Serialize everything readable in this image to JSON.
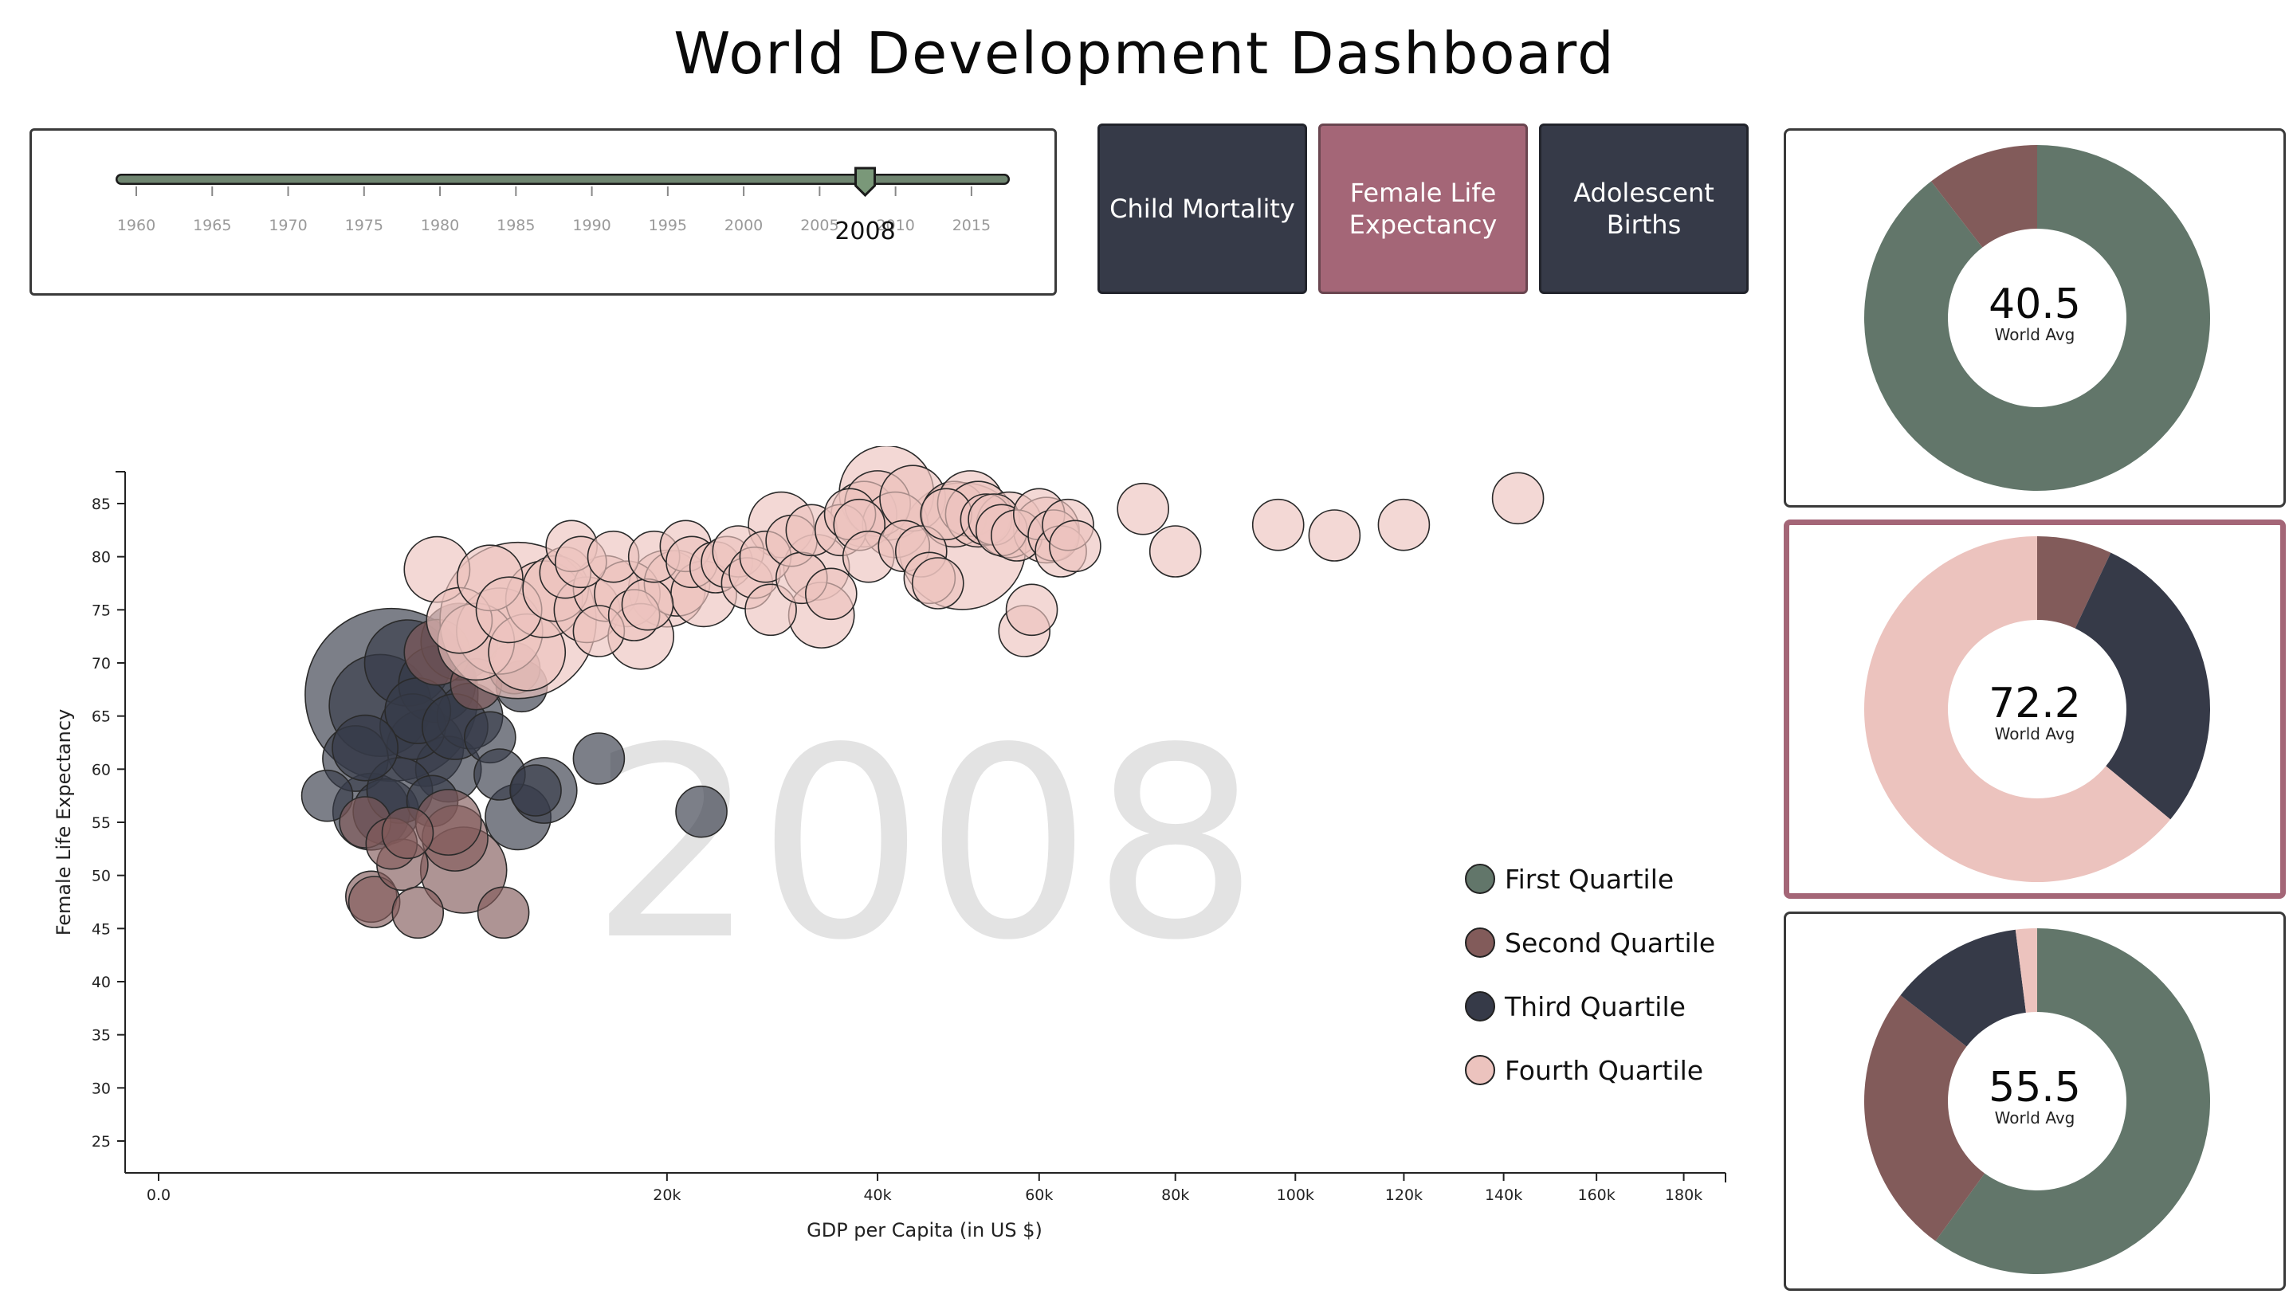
{
  "title": "World Development Dashboard",
  "year_slider": {
    "value": 2008,
    "value_label": "2008",
    "min": 1960,
    "max": 2017,
    "tick_labels": [
      "1960",
      "1965",
      "1970",
      "1975",
      "1980",
      "1985",
      "1990",
      "1995",
      "2000",
      "2005",
      "2010",
      "2015"
    ]
  },
  "buttons": [
    {
      "label": "Child Mortality",
      "active": false
    },
    {
      "label": "Female Life Expectancy",
      "active": true
    },
    {
      "label": "Adolescent Births",
      "active": false
    }
  ],
  "colors": {
    "first_quartile": "#62766a",
    "second_quartile": "#825b5a",
    "third_quartile": "#363a48",
    "fourth_quartile": "#ecc3be",
    "accent": "#a46677"
  },
  "donuts": [
    {
      "value": "40.5",
      "label": "World Avg",
      "selected": false,
      "slices": [
        {
          "quartile": "first_quartile",
          "fraction": 0.895
        },
        {
          "quartile": "second_quartile",
          "fraction": 0.105
        }
      ]
    },
    {
      "value": "72.2",
      "label": "World Avg",
      "selected": true,
      "slices": [
        {
          "quartile": "second_quartile",
          "fraction": 0.07
        },
        {
          "quartile": "third_quartile",
          "fraction": 0.29
        },
        {
          "quartile": "fourth_quartile",
          "fraction": 0.64
        }
      ]
    },
    {
      "value": "55.5",
      "label": "World Avg",
      "selected": false,
      "slices": [
        {
          "quartile": "first_quartile",
          "fraction": 0.6
        },
        {
          "quartile": "second_quartile",
          "fraction": 0.255
        },
        {
          "quartile": "third_quartile",
          "fraction": 0.125
        },
        {
          "quartile": "fourth_quartile",
          "fraction": 0.02
        }
      ]
    }
  ],
  "legend": [
    {
      "label": "First Quartile",
      "quartile": "first_quartile"
    },
    {
      "label": "Second Quartile",
      "quartile": "second_quartile"
    },
    {
      "label": "Third Quartile",
      "quartile": "third_quartile"
    },
    {
      "label": "Fourth Quartile",
      "quartile": "fourth_quartile"
    }
  ],
  "chart_data": {
    "type": "scatter",
    "xlabel": "GDP per Capita (in US $)",
    "ylabel": "Female Life Expectancy",
    "year_label": "2008",
    "x_scale": "sqrt",
    "xlim": [
      0,
      190000
    ],
    "ylim": [
      22,
      88
    ],
    "x_ticks": [
      {
        "value": 0,
        "label": "0.0"
      },
      {
        "value": 20000,
        "label": "20k"
      },
      {
        "value": 40000,
        "label": "40k"
      },
      {
        "value": 60000,
        "label": "60k"
      },
      {
        "value": 80000,
        "label": "80k"
      },
      {
        "value": 100000,
        "label": "100k"
      },
      {
        "value": 120000,
        "label": "120k"
      },
      {
        "value": 140000,
        "label": "140k"
      },
      {
        "value": 160000,
        "label": "160k"
      },
      {
        "value": 180000,
        "label": "180k"
      }
    ],
    "y_ticks": [
      25,
      30,
      35,
      40,
      45,
      50,
      55,
      60,
      65,
      70,
      75,
      80,
      85
    ],
    "series": [
      {
        "quartile": "third_quartile",
        "points": [
          [
            2200,
            57.5,
            1
          ],
          [
            3000,
            61,
            2
          ],
          [
            3800,
            66,
            6
          ],
          [
            4200,
            67,
            20
          ],
          [
            4800,
            70,
            4
          ],
          [
            5500,
            62,
            3
          ],
          [
            6500,
            60,
            2
          ],
          [
            4000,
            56,
            2
          ],
          [
            3500,
            56,
            3
          ],
          [
            5000,
            64,
            2
          ],
          [
            6000,
            68,
            3
          ],
          [
            7000,
            72,
            3
          ],
          [
            4500,
            58,
            2
          ],
          [
            5800,
            57,
            1
          ],
          [
            7500,
            65,
            2
          ],
          [
            8500,
            63,
            1
          ],
          [
            9000,
            59.5,
            1
          ],
          [
            10000,
            55.5,
            2
          ],
          [
            10200,
            67.8,
            1
          ],
          [
            11000,
            58,
            1
          ],
          [
            11500,
            58,
            2
          ],
          [
            15000,
            61,
            1
          ],
          [
            22800,
            56,
            1
          ],
          [
            5200,
            65.5,
            2
          ],
          [
            3300,
            62,
            2
          ],
          [
            6800,
            64,
            2
          ]
        ]
      },
      {
        "quartile": "second_quartile",
        "points": [
          [
            3300,
            55,
            1
          ],
          [
            3500,
            48,
            1
          ],
          [
            3600,
            47.5,
            1
          ],
          [
            4600,
            51,
            1
          ],
          [
            5200,
            46.5,
            1
          ],
          [
            4200,
            53,
            1
          ],
          [
            7200,
            50.5,
            4
          ],
          [
            9200,
            46.5,
            1
          ],
          [
            6800,
            53.5,
            2
          ],
          [
            6500,
            55,
            2
          ],
          [
            4800,
            54,
            1
          ],
          [
            6000,
            71,
            2
          ],
          [
            7800,
            68,
            1
          ],
          [
            9800,
            69.5,
            1
          ]
        ]
      },
      {
        "quartile": "fourth_quartile",
        "points": [
          [
            6000,
            78.8,
            2
          ],
          [
            7000,
            74,
            2
          ],
          [
            7800,
            72,
            3
          ],
          [
            8500,
            78,
            2
          ],
          [
            9000,
            73,
            4
          ],
          [
            9500,
            75,
            2
          ],
          [
            10000,
            74,
            16
          ],
          [
            10500,
            71,
            3
          ],
          [
            11500,
            76,
            3
          ],
          [
            12200,
            77,
            2
          ],
          [
            12800,
            78.5,
            1
          ],
          [
            13200,
            81,
            1
          ],
          [
            13800,
            79.5,
            1
          ],
          [
            14200,
            75,
            2
          ],
          [
            15000,
            73,
            1
          ],
          [
            15500,
            77,
            2
          ],
          [
            16000,
            80,
            1
          ],
          [
            17000,
            76.5,
            2
          ],
          [
            17500,
            74.5,
            1
          ],
          [
            18000,
            72.5,
            2
          ],
          [
            18500,
            75.5,
            1
          ],
          [
            19000,
            80,
            1
          ],
          [
            20000,
            77,
            3
          ],
          [
            20800,
            77.5,
            2
          ],
          [
            21500,
            81,
            1
          ],
          [
            22000,
            79.5,
            1
          ],
          [
            23000,
            76.5,
            2
          ],
          [
            24000,
            79,
            1
          ],
          [
            25000,
            79.5,
            1
          ],
          [
            26000,
            80.5,
            1
          ],
          [
            26800,
            77.5,
            1
          ],
          [
            27500,
            78.5,
            1
          ],
          [
            28500,
            80,
            1
          ],
          [
            29000,
            75,
            1
          ],
          [
            30000,
            83,
            2
          ],
          [
            31000,
            81.5,
            1
          ],
          [
            32000,
            78,
            1
          ],
          [
            33000,
            82.5,
            1
          ],
          [
            33500,
            79,
            2
          ],
          [
            34000,
            74.5,
            2
          ],
          [
            35000,
            76.5,
            1
          ],
          [
            36000,
            82.5,
            1
          ],
          [
            37000,
            84,
            1
          ],
          [
            38000,
            83,
            1
          ],
          [
            38500,
            84,
            2
          ],
          [
            39000,
            80,
            1
          ],
          [
            40000,
            85,
            2
          ],
          [
            41000,
            86,
            5
          ],
          [
            42000,
            83,
            2
          ],
          [
            43000,
            81,
            1
          ],
          [
            44000,
            85.5,
            2
          ],
          [
            45000,
            80.5,
            1
          ],
          [
            46000,
            78,
            1
          ],
          [
            47000,
            77.5,
            1
          ],
          [
            48000,
            84,
            1
          ],
          [
            49000,
            84,
            2
          ],
          [
            50000,
            81,
            10
          ],
          [
            51000,
            85,
            2
          ],
          [
            52000,
            84,
            2
          ],
          [
            53000,
            83.5,
            1
          ],
          [
            54000,
            83.5,
            1
          ],
          [
            55000,
            82.5,
            1
          ],
          [
            56000,
            83,
            2
          ],
          [
            57000,
            82,
            1
          ],
          [
            58000,
            73,
            1
          ],
          [
            59000,
            75,
            1
          ],
          [
            60000,
            84,
            1
          ],
          [
            61000,
            82.5,
            2
          ],
          [
            62000,
            82,
            1
          ],
          [
            63000,
            80.5,
            1
          ],
          [
            64000,
            83,
            1
          ],
          [
            65000,
            81,
            1
          ],
          [
            75000,
            84.5,
            1
          ],
          [
            80000,
            80.5,
            1
          ],
          [
            97000,
            83,
            1
          ],
          [
            107000,
            82,
            1
          ],
          [
            120000,
            83,
            1
          ],
          [
            143000,
            85.5,
            1
          ]
        ]
      }
    ]
  }
}
